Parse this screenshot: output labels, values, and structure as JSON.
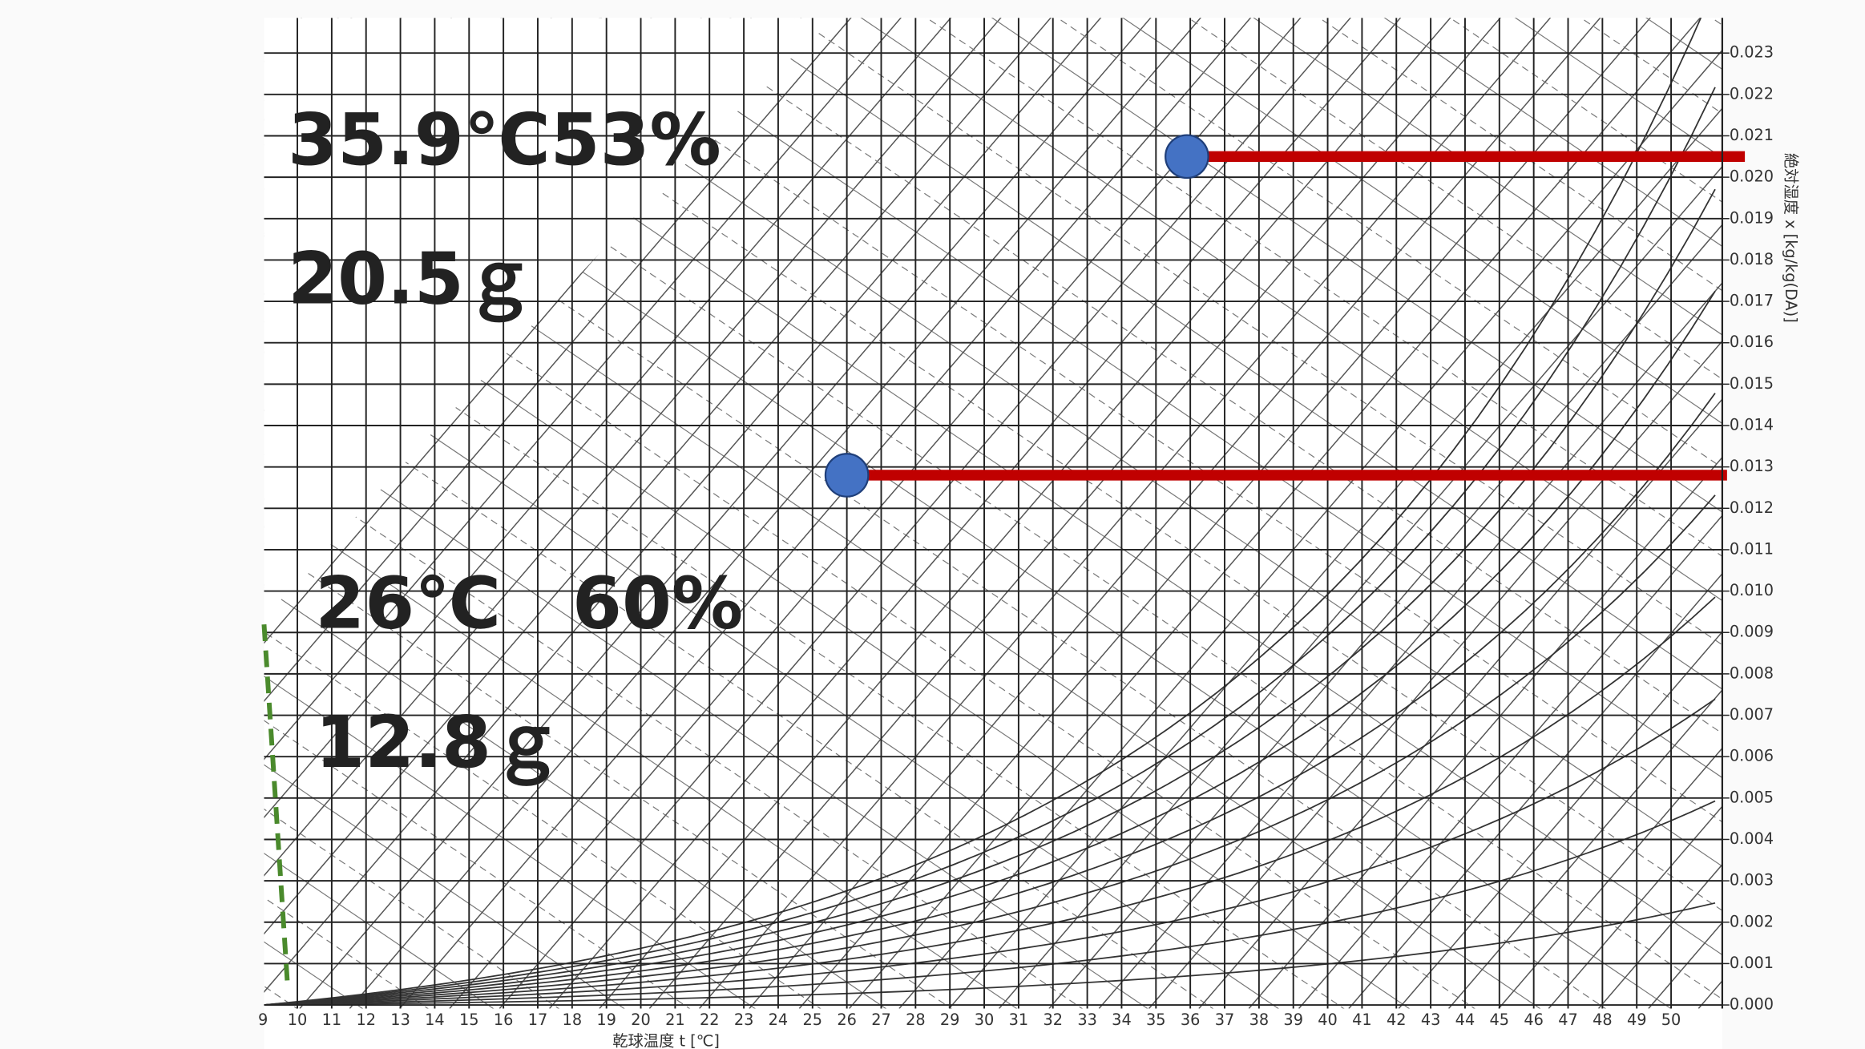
{
  "chart_data": {
    "type": "scatter",
    "x_label": "乾球温度 t [℃]",
    "y_label": "絶対湿度 x [kg/kg(DA)]",
    "xlim": [
      9.03,
      51.49
    ],
    "xticks": [
      9,
      10,
      11,
      12,
      13,
      14,
      15,
      16,
      17,
      18,
      19,
      20,
      21,
      22,
      23,
      24,
      25,
      26,
      27,
      28,
      29,
      30,
      31,
      32,
      33,
      34,
      35,
      36,
      37,
      38,
      39,
      40,
      41,
      42,
      43,
      44,
      45,
      46,
      47,
      48,
      49,
      50
    ],
    "ylim": [
      0,
      0.02385
    ],
    "yticks": [
      {
        "value": 0,
        "label": "0.000"
      },
      0.001,
      0.002,
      0.003,
      0.004,
      0.005,
      0.006,
      0.007,
      0.008,
      0.009,
      {
        "value": 0.01,
        "label": "0.010"
      },
      0.011,
      0.012,
      0.013,
      0.014,
      0.015,
      0.016,
      0.017,
      0.018,
      0.019,
      {
        "value": 0.02,
        "label": "0.020"
      },
      0.021,
      0.022,
      0.023
    ],
    "grid": true,
    "series": [
      {
        "color": "#4472c4",
        "x": [
          35.9,
          26
        ],
        "values": [
          0.0205,
          0.0128
        ]
      }
    ],
    "line_color": "#c00000",
    "annotations": [
      "35.9℃53%",
      "20.5ｇ",
      "26℃　60%",
      "12.8ｇ"
    ]
  }
}
